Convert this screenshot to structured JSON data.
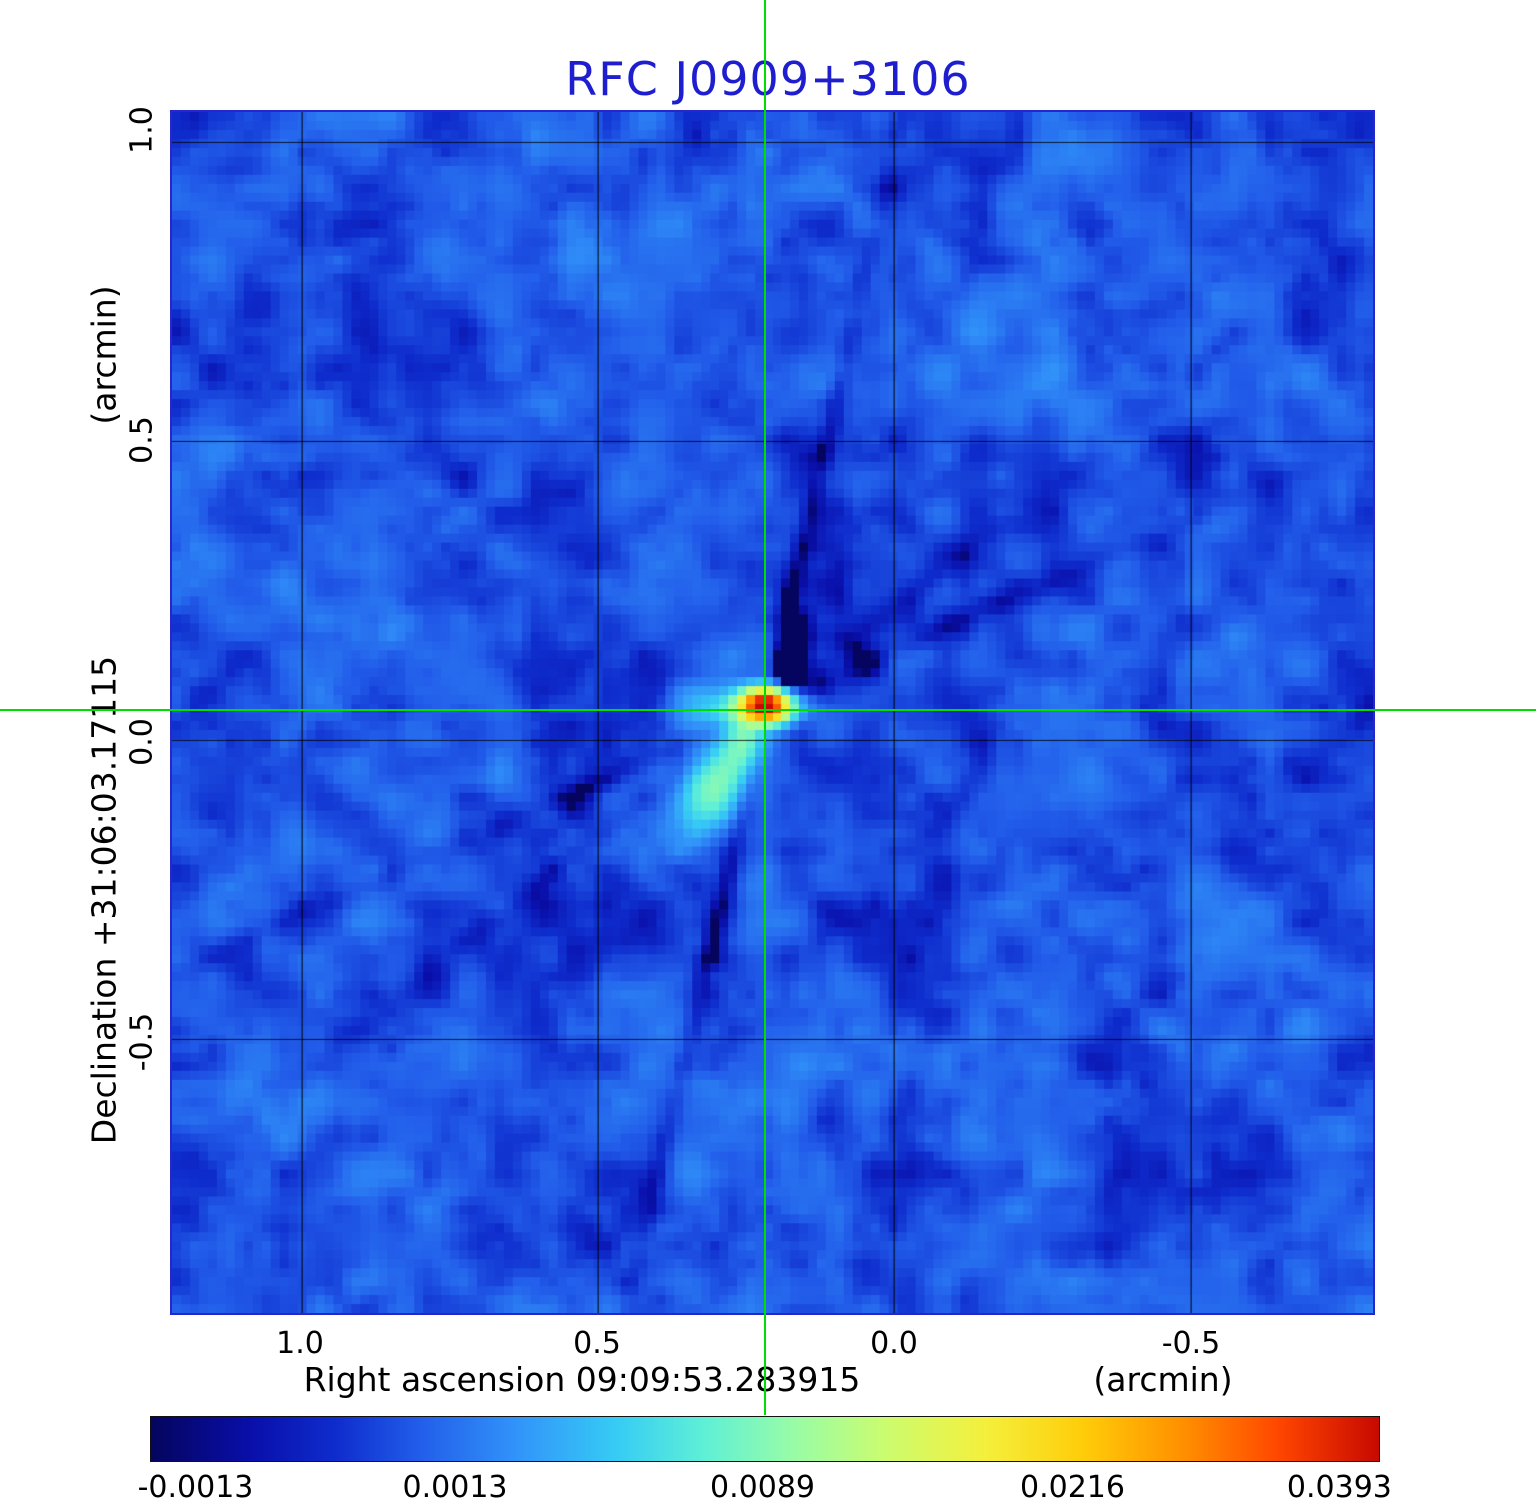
{
  "title": "RFC J0909+3106",
  "axes": {
    "y_unit_label": "(arcmin)",
    "y_axis_label": "Declination  +31:06:03.17115",
    "x_axis_label": "Right ascension  09:09:53.283915",
    "x_unit_label": "(arcmin)",
    "x_ticks": [
      "1.0",
      "0.5",
      "0.0",
      "-0.5"
    ],
    "y_ticks": [
      "1.0",
      "0.5",
      "0.0",
      "-0.5"
    ]
  },
  "colorbar": {
    "tick_labels": [
      "-0.0013",
      "0.0013",
      "0.0089",
      "0.0216",
      "0.0393"
    ]
  },
  "chart_data": {
    "type": "heatmap",
    "title": "RFC J0909+3106",
    "xlabel": "Right ascension 09:09:53.283915 (arcmin)",
    "ylabel": "Declination +31:06:03.17115 (arcmin)",
    "x_range_arcmin": [
      1.22,
      -0.8
    ],
    "y_range_arcmin": [
      -0.95,
      1.03
    ],
    "x_tick_values": [
      1.0,
      0.5,
      0.0,
      -0.5
    ],
    "y_tick_values": [
      1.0,
      0.5,
      0.0,
      -0.5
    ],
    "intensity_scale": "sqrt",
    "value_min": -0.0013,
    "value_max": 0.0393,
    "colorbar_tick_values": [
      -0.0013,
      0.0013,
      0.0089,
      0.0216,
      0.0393
    ],
    "source_peak": {
      "x_arcmin": 0.22,
      "y_arcmin": 0.05,
      "peak_value": 0.0393
    },
    "crosshair_fraction": {
      "x": 0.4938,
      "y": 0.4971
    },
    "grid_fractions": {
      "x": [
        0.108,
        0.354,
        0.601,
        0.848
      ],
      "y": [
        0.025,
        0.274,
        0.523,
        0.772
      ]
    },
    "colormap_stops": [
      [
        0.0,
        [
          5,
          5,
          95
        ]
      ],
      [
        0.08,
        [
          10,
          15,
          170
        ]
      ],
      [
        0.15,
        [
          15,
          45,
          205
        ]
      ],
      [
        0.22,
        [
          35,
          95,
          235
        ]
      ],
      [
        0.3,
        [
          50,
          150,
          250
        ]
      ],
      [
        0.38,
        [
          55,
          205,
          245
        ]
      ],
      [
        0.45,
        [
          95,
          240,
          215
        ]
      ],
      [
        0.52,
        [
          150,
          252,
          170
        ]
      ],
      [
        0.6,
        [
          205,
          252,
          110
        ]
      ],
      [
        0.68,
        [
          245,
          240,
          60
        ]
      ],
      [
        0.76,
        [
          255,
          205,
          10
        ]
      ],
      [
        0.84,
        [
          255,
          145,
          0
        ]
      ],
      [
        0.92,
        [
          255,
          70,
          0
        ]
      ],
      [
        1.0,
        [
          200,
          10,
          0
        ]
      ]
    ],
    "noise": {
      "seed": 77031,
      "cells": 134,
      "base_value": 0.0004,
      "amplitude": 0.0012,
      "octaves": [
        {
          "size": 9,
          "amp": 0.4
        },
        {
          "size": 18,
          "amp": 0.55
        },
        {
          "size": 33,
          "amp": 0.65
        },
        {
          "size": 67,
          "amp": 0.35
        }
      ]
    },
    "features": [
      {
        "kind": "gaussian",
        "x": 0.494,
        "y": 0.494,
        "sx": 0.013,
        "sy": 0.009,
        "rot": 0,
        "amp": 0.042
      },
      {
        "kind": "gaussian",
        "x": 0.472,
        "y": 0.496,
        "sx": 0.034,
        "sy": 0.012,
        "rot": 0,
        "amp": 0.0045
      },
      {
        "kind": "gaussian",
        "x": 0.455,
        "y": 0.557,
        "sx": 0.032,
        "sy": 0.016,
        "rot": -58,
        "amp": 0.008
      },
      {
        "kind": "gaussian",
        "x": 0.478,
        "y": 0.52,
        "sx": 0.012,
        "sy": 0.016,
        "rot": 0,
        "amp": 0.005
      },
      {
        "kind": "gaussian",
        "x": 0.517,
        "y": 0.455,
        "sx": 0.02,
        "sy": 0.008,
        "rot": -77,
        "amp": -0.0045
      },
      {
        "kind": "streak",
        "x": 0.494,
        "y": 0.497,
        "angle": 103,
        "len": 0.38,
        "sigma": 0.007,
        "amp": -0.0014
      },
      {
        "kind": "streak",
        "x": 0.494,
        "y": 0.497,
        "angle": -24,
        "len": 0.4,
        "sigma": 0.007,
        "amp": -0.0009
      },
      {
        "kind": "streak",
        "x": 0.494,
        "y": 0.497,
        "angle": 142,
        "len": 0.4,
        "sigma": 0.008,
        "amp": -0.0007
      }
    ]
  }
}
